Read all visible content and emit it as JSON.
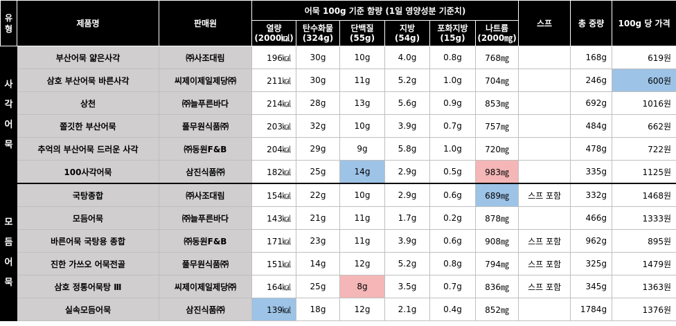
{
  "headers": {
    "type": "유형",
    "product": "제품명",
    "seller": "판매원",
    "group": "어묵 100g 기준 함량 (1일 영양성분 기준치)",
    "kcal": [
      "열량",
      "(2000㎉)"
    ],
    "carb": [
      "탄수화물",
      "(324g)"
    ],
    "protein": [
      "단백질",
      "(55g)"
    ],
    "fat": [
      "지방",
      "(54g)"
    ],
    "satfat": [
      "포화지방",
      "(15g)"
    ],
    "sodium": [
      "나트륨",
      "(2000㎎)"
    ],
    "soup": "스프",
    "weight": "총 중량",
    "price": "100g 당 가격"
  },
  "categories": [
    {
      "label": [
        "사",
        "각",
        "어",
        "묵"
      ]
    },
    {
      "label": [
        "모",
        "듬",
        "어",
        "묵"
      ]
    }
  ],
  "rows": [
    {
      "product": "부산어묵 얇은사각",
      "seller": "㈜사조대림",
      "kcal": "196㎉",
      "carb": "30g",
      "protein": "10g",
      "fat": "4.0g",
      "satfat": "0.8g",
      "sodium": "768㎎",
      "soup": "",
      "weight": "168g",
      "price": "619원"
    },
    {
      "product": "삼호 부산어묵 바른사각",
      "seller": "씨제이제일제당㈜",
      "kcal": "211㎉",
      "carb": "30g",
      "protein": "11g",
      "fat": "5.2g",
      "satfat": "1.0g",
      "sodium": "704㎎",
      "soup": "",
      "weight": "246g",
      "price": "600원"
    },
    {
      "product": "상천",
      "seller": "㈜늘푸른바다",
      "kcal": "214㎉",
      "carb": "28g",
      "protein": "13g",
      "fat": "5.6g",
      "satfat": "0.9g",
      "sodium": "853㎎",
      "soup": "",
      "weight": "692g",
      "price": "1016원"
    },
    {
      "product": "쫄깃한 부산어묵",
      "seller": "풀무원식품㈜",
      "kcal": "203㎉",
      "carb": "32g",
      "protein": "10g",
      "fat": "3.9g",
      "satfat": "0.7g",
      "sodium": "757㎎",
      "soup": "",
      "weight": "484g",
      "price": "662원"
    },
    {
      "product": "추억의 부산어묵 드러운 사각",
      "seller": "㈜동원F&B",
      "kcal": "204㎉",
      "carb": "29g",
      "protein": "9g",
      "fat": "5.8g",
      "satfat": "1.0g",
      "sodium": "720㎎",
      "soup": "",
      "weight": "478g",
      "price": "722원"
    },
    {
      "product": "100사각어묵",
      "seller": "삼진식품㈜",
      "kcal": "182㎉",
      "carb": "25g",
      "protein": "14g",
      "fat": "2.9g",
      "satfat": "0.5g",
      "sodium": "983㎎",
      "soup": "",
      "weight": "335g",
      "price": "1125원"
    },
    {
      "product": "국탕종합",
      "seller": "㈜사조대림",
      "kcal": "154㎉",
      "carb": "22g",
      "protein": "10g",
      "fat": "2.9g",
      "satfat": "0.6g",
      "sodium": "689㎎",
      "soup": "스프 포함",
      "weight": "332g",
      "price": "1468원"
    },
    {
      "product": "모듬어묵",
      "seller": "㈜늘푸른바다",
      "kcal": "143㎉",
      "carb": "21g",
      "protein": "11g",
      "fat": "1.7g",
      "satfat": "0.2g",
      "sodium": "878㎎",
      "soup": "",
      "weight": "466g",
      "price": "1333원"
    },
    {
      "product": "바른어묵 국탕용 종합",
      "seller": "㈜동원F&B",
      "kcal": "171㎉",
      "carb": "23g",
      "protein": "11g",
      "fat": "3.9g",
      "satfat": "0.6g",
      "sodium": "908㎎",
      "soup": "스프 포함",
      "weight": "962g",
      "price": "895원"
    },
    {
      "product": "진한 가쓰오 어묵전골",
      "seller": "풀무원식품㈜",
      "kcal": "151㎉",
      "carb": "14g",
      "protein": "12g",
      "fat": "5.2g",
      "satfat": "0.8g",
      "sodium": "794㎎",
      "soup": "스프 포함",
      "weight": "325g",
      "price": "1479원"
    },
    {
      "product": "삼호 정통어묵탕 Ⅲ",
      "seller": "씨제이제일제당㈜",
      "kcal": "164㎉",
      "carb": "25g",
      "protein": "8g",
      "fat": "3.5g",
      "satfat": "0.7g",
      "sodium": "836㎎",
      "soup": "스프 포함",
      "weight": "345g",
      "price": "1363원"
    },
    {
      "product": "실속모듬어묵",
      "seller": "삼진식품㈜",
      "kcal": "139㎉",
      "carb": "18g",
      "protein": "12g",
      "fat": "2.1g",
      "satfat": "0.4g",
      "sodium": "852㎎",
      "soup": "",
      "weight": "1784g",
      "price": "1376원"
    }
  ],
  "highlights": {
    "lowest_color": "#9dc3e6",
    "highest_color": "#f4b6b6"
  }
}
